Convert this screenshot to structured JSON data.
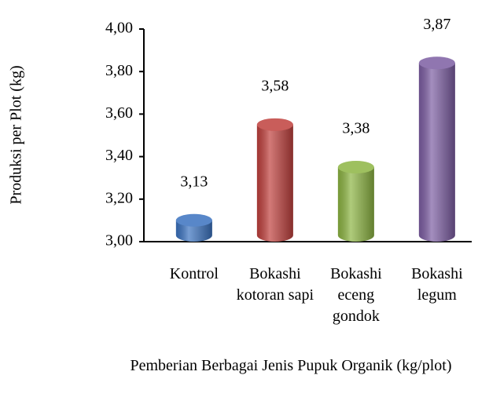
{
  "chart_data": {
    "type": "bar",
    "y_label": "Produksi per Plot (kg)",
    "x_label": "Pemberian Berbagai Jenis Pupuk Organik (kg/plot)",
    "categories": [
      "Kontrol",
      "Bokashi kotoran sapi",
      "Bokashi eceng gondok",
      "Bokashi legum"
    ],
    "values": [
      3.13,
      3.58,
      3.38,
      3.87
    ],
    "value_labels": [
      "3,13",
      "3,58",
      "3,38",
      "3,87"
    ],
    "colors": [
      "#3b73c0",
      "#c0413e",
      "#8db543",
      "#7d5ea3"
    ],
    "ylim": [
      3,
      4
    ],
    "yticks": [
      {
        "value": 3,
        "label": "3,00"
      },
      {
        "value": 3.2,
        "label": "3,20"
      },
      {
        "value": 3.4,
        "label": "3,40"
      },
      {
        "value": 3.6,
        "label": "3,60"
      },
      {
        "value": 3.8,
        "label": "3,80"
      },
      {
        "value": 4,
        "label": "4,00"
      }
    ],
    "grid": false
  }
}
